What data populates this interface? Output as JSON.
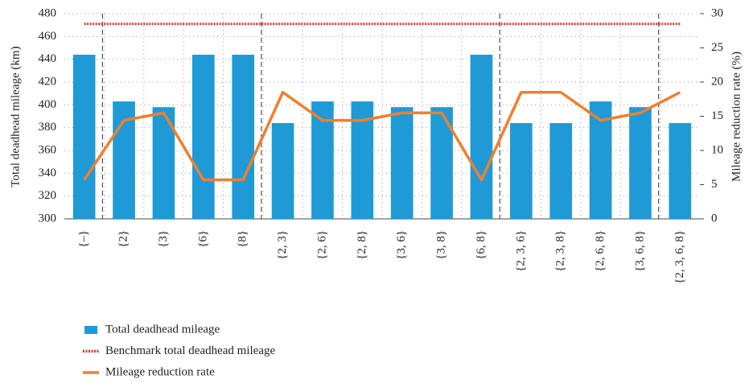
{
  "chart_data": {
    "type": "bar",
    "categories": [
      "{–}",
      "{2}",
      "{3}",
      "{6}",
      "{8}",
      "{2, 3}",
      "{2, 6}",
      "{2, 8}",
      "{3, 6}",
      "{3, 8}",
      "{6, 8}",
      "{2, 3, 6}",
      "{2, 3, 8}",
      "{2, 6, 8}",
      "{3, 6, 8}",
      "{2, 3, 6, 8}"
    ],
    "y_label": "Total deadhead mileage (km)",
    "y2_label": "Mileage reduction rate (%)",
    "ylim": [
      300,
      480
    ],
    "yticks": [
      300,
      320,
      340,
      360,
      380,
      400,
      420,
      440,
      460,
      480
    ],
    "y2lim": [
      0,
      30
    ],
    "y2ticks": [
      0,
      5,
      10,
      15,
      20,
      25,
      30
    ],
    "grid": true,
    "legend": "bottom-left",
    "series": [
      {
        "name": "Total deadhead mileage",
        "type": "bar",
        "color": "#1f9ad6",
        "values": [
          444,
          403,
          398,
          444,
          444,
          384,
          403,
          403,
          398,
          398,
          444,
          384,
          384,
          403,
          398,
          384
        ]
      },
      {
        "name": "Benchmark total deadhead mileage",
        "type": "dashed-line",
        "color": "#e8352b",
        "values": [
          471,
          471,
          471,
          471,
          471,
          471,
          471,
          471,
          471,
          471,
          471,
          471,
          471,
          471,
          471,
          471
        ]
      },
      {
        "name": "Mileage reduction rate",
        "type": "line",
        "color": "#f07f2d",
        "axis": "y2",
        "values": [
          5.7,
          14.4,
          15.5,
          5.7,
          5.7,
          18.5,
          14.4,
          14.4,
          15.5,
          15.5,
          5.7,
          18.5,
          18.5,
          14.4,
          15.5,
          18.5
        ]
      }
    ]
  }
}
